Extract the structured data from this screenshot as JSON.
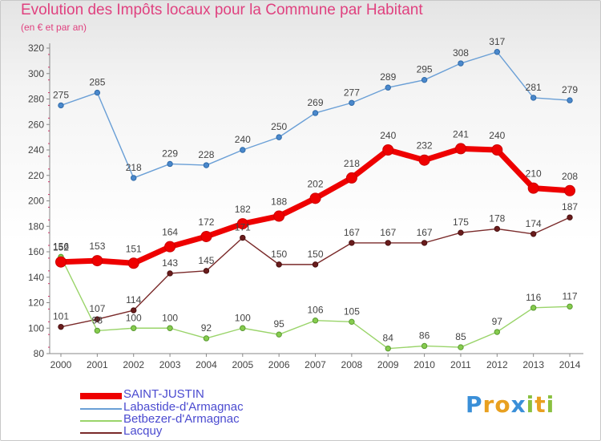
{
  "title": "Evolution des Impôts locaux pour la Commune par Habitant",
  "subtitle": "(en € et par an)",
  "logo": "Proxiti",
  "chart_data": {
    "type": "line",
    "x": [
      "2000",
      "2001",
      "2002",
      "2003",
      "2004",
      "2005",
      "2006",
      "2007",
      "2008",
      "2009",
      "2010",
      "2011",
      "2012",
      "2013",
      "2014"
    ],
    "ylim": [
      80,
      320
    ],
    "yticks": [
      80,
      100,
      120,
      140,
      160,
      180,
      200,
      220,
      240,
      260,
      280,
      300,
      320
    ],
    "grid": false,
    "legend_position": "bottom-left",
    "series": [
      {
        "name": "SAINT-JUSTIN",
        "color": "#ee0000",
        "values": [
          152,
          153,
          151,
          164,
          172,
          182,
          188,
          202,
          218,
          240,
          232,
          241,
          240,
          210,
          208
        ]
      },
      {
        "name": "Labastide-d'Armagnac",
        "color": "#6a9fd6",
        "values": [
          275,
          285,
          218,
          229,
          228,
          240,
          250,
          269,
          277,
          289,
          295,
          308,
          317,
          281,
          279
        ]
      },
      {
        "name": "Betbezer-d'Armagnac",
        "color": "#9ad46a",
        "values": [
          156,
          98,
          100,
          100,
          92,
          100,
          95,
          106,
          105,
          84,
          86,
          85,
          97,
          116,
          117
        ]
      },
      {
        "name": "Lacquy",
        "color": "#7a2a2a",
        "values": [
          101,
          107,
          114,
          143,
          145,
          171,
          150,
          150,
          167,
          167,
          167,
          175,
          178,
          174,
          187
        ]
      }
    ]
  }
}
